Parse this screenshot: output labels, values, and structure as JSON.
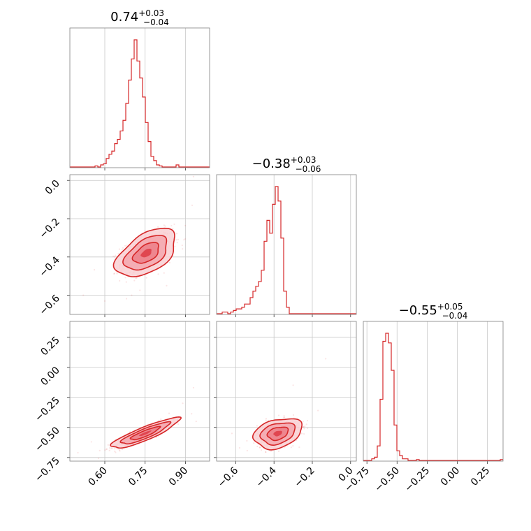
{
  "chart_data": {
    "type": "corner",
    "color": "#d62728",
    "parameters": [
      {
        "range": [
          0.47,
          0.99
        ],
        "ticks": [
          0.6,
          0.75,
          0.9
        ],
        "tick_labels": [
          "0.60",
          "0.75",
          "0.90"
        ],
        "title": {
          "median": "0.74",
          "plus": "+0.03",
          "minus": "−0.04"
        }
      },
      {
        "range": [
          -0.7,
          0.03
        ],
        "ticks": [
          -0.6,
          -0.4,
          -0.2,
          0.0
        ],
        "tick_labels": [
          "−0.6",
          "−0.4",
          "−0.2",
          "0.0"
        ],
        "title": {
          "median": "−0.38",
          "plus": "+0.03",
          "minus": "−0.06"
        }
      },
      {
        "range": [
          -0.78,
          0.38
        ],
        "ticks": [
          -0.75,
          -0.5,
          -0.25,
          0.0,
          0.25
        ],
        "tick_labels": [
          "−0.75",
          "−0.50",
          "−0.25",
          "0.00",
          "0.25"
        ],
        "title": {
          "median": "−0.55",
          "plus": "+0.05",
          "minus": "−0.04"
        }
      }
    ],
    "histograms": [
      {
        "bin_edges_from": 0.47,
        "bin_width": 0.0104,
        "counts": [
          0,
          0,
          0,
          0,
          0,
          0,
          0,
          0,
          0,
          0.5,
          0,
          1,
          1.5,
          4,
          6,
          7.5,
          11,
          13,
          17,
          22,
          30,
          41,
          51,
          60,
          50,
          42,
          33,
          21,
          12,
          5,
          3,
          1,
          0.5,
          0,
          0,
          0,
          0,
          0,
          1,
          0,
          0,
          0,
          0,
          0,
          0,
          0,
          0,
          0,
          0,
          0
        ]
      },
      {
        "bin_edges_from": -0.7,
        "bin_width": 0.0146,
        "counts": [
          0,
          0,
          1,
          1,
          0,
          1,
          2,
          3,
          3,
          4,
          6,
          6,
          10,
          14,
          17,
          20,
          27,
          45,
          58,
          50,
          68,
          79,
          70,
          47,
          14,
          4,
          0,
          0,
          0,
          0,
          0,
          0,
          0,
          0,
          0,
          0,
          0,
          0,
          0,
          0,
          0,
          0,
          0,
          0,
          0,
          0,
          0,
          0,
          0,
          0
        ]
      },
      {
        "bin_edges_from": -0.78,
        "bin_width": 0.0232,
        "counts": [
          0,
          0,
          0,
          1,
          2,
          9,
          38,
          74,
          79,
          73,
          56,
          22,
          6,
          3,
          1,
          1,
          0,
          0,
          0,
          0.5,
          0,
          0,
          0,
          0,
          0,
          0,
          0,
          0,
          0,
          0,
          0,
          0,
          0,
          0,
          0,
          0,
          0,
          0,
          0,
          0,
          0,
          0,
          0,
          0,
          0,
          0,
          0,
          0,
          0,
          0.5
        ]
      }
    ],
    "pairs": [
      {
        "x_param": 0,
        "y_param": 1,
        "center": [
          0.755,
          -0.38
        ],
        "sx": 0.04,
        "sy": 0.045,
        "rho": 0.5,
        "levels": [
          0.5,
          1.2,
          2.0,
          2.8
        ],
        "outliers": [
          [
            0.93,
            0.02
          ],
          [
            0.925,
            -0.13
          ],
          [
            0.52,
            -0.6
          ],
          [
            0.6,
            -0.63
          ],
          [
            0.7,
            -0.6
          ],
          [
            0.83,
            -0.55
          ]
        ]
      },
      {
        "x_param": 0,
        "y_param": 2,
        "center": [
          0.75,
          -0.55
        ],
        "sx": 0.045,
        "sy": 0.045,
        "rho": 0.88,
        "levels": [
          0.5,
          1.2,
          2.0,
          2.8
        ],
        "outliers": [
          [
            0.93,
            -0.17
          ],
          [
            0.89,
            -0.3
          ],
          [
            0.5,
            -0.71
          ],
          [
            0.55,
            -0.62
          ],
          [
            0.94,
            -0.45
          ]
        ]
      },
      {
        "x_param": 1,
        "y_param": 2,
        "center": [
          -0.38,
          -0.55
        ],
        "sx": 0.045,
        "sy": 0.045,
        "rho": 0.3,
        "levels": [
          0.5,
          1.2,
          2.0,
          2.8
        ],
        "outliers": [
          [
            -0.13,
            0.07
          ],
          [
            -0.3,
            -0.15
          ],
          [
            -0.17,
            -0.36
          ],
          [
            -0.62,
            -0.55
          ],
          [
            -0.58,
            -0.67
          ],
          [
            -0.49,
            -0.62
          ]
        ]
      }
    ]
  }
}
